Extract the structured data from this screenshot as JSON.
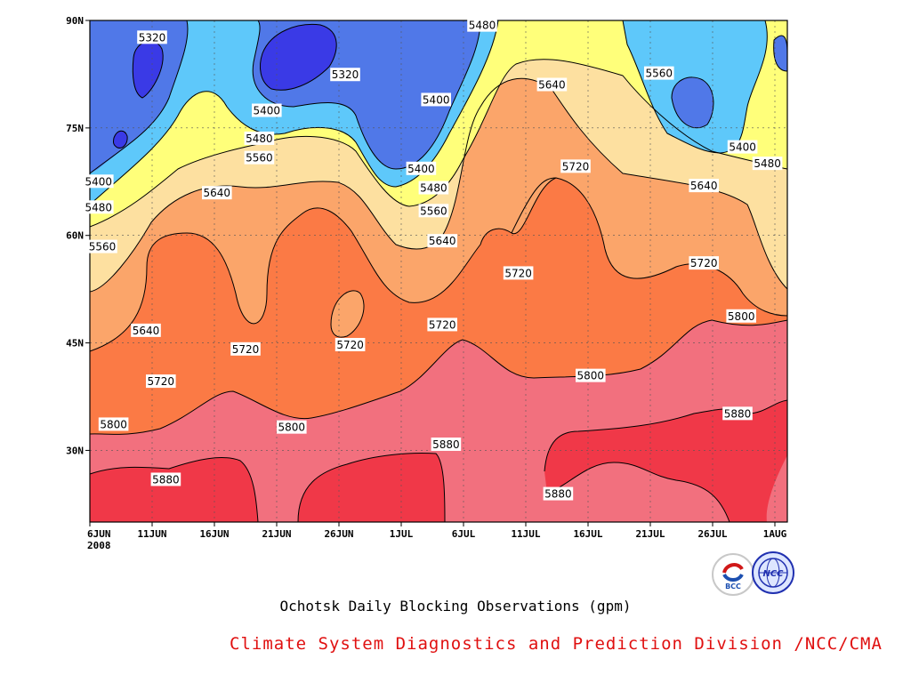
{
  "chart_data": {
    "type": "heatmap",
    "title": "Ochotsk Daily Blocking Observations (gpm)",
    "credit": "Climate System Diagnostics and Prediction Division /NCC/CMA",
    "credit_color": "#e01010",
    "x_ticks": [
      "6JUN",
      "11JUN",
      "16JUN",
      "21JUN",
      "26JUN",
      "1JUL",
      "6JUL",
      "11JUL",
      "16JUL",
      "21JUL",
      "26JUL",
      "1AUG"
    ],
    "x_tick_days": [
      0,
      5,
      10,
      15,
      20,
      25,
      30,
      35,
      40,
      45,
      50,
      55
    ],
    "x_year_label": "2008",
    "x_range_days": [
      0,
      56
    ],
    "y_ticks": [
      "30N",
      "45N",
      "60N",
      "75N",
      "90N"
    ],
    "y_tick_values": [
      30,
      45,
      60,
      75,
      90
    ],
    "y_range": [
      20,
      90
    ],
    "grid": true,
    "contour_levels": [
      5320,
      5400,
      5480,
      5560,
      5640,
      5720,
      5800,
      5880
    ],
    "fill_colors": {
      "below_5320": "#3a3ae6",
      "5320_5400": "#5078e8",
      "5400_5480": "#5ec8fa",
      "5480_5560": "#ffff7a",
      "5560_5640": "#fde0a0",
      "5640_5720": "#fba56a",
      "5720_5800": "#fb7a45",
      "5800_5880": "#f2707e",
      "above_5880": "#f03848"
    },
    "contour_labels": [
      {
        "text": "5320",
        "day": 5.0,
        "lat": 87.6
      },
      {
        "text": "5320",
        "day": 20.5,
        "lat": 82.4
      },
      {
        "text": "5480",
        "day": 31.5,
        "lat": 89.3
      },
      {
        "text": "5400",
        "day": 14.2,
        "lat": 77.4
      },
      {
        "text": "5400",
        "day": 27.8,
        "lat": 78.9
      },
      {
        "text": "5640",
        "day": 37.1,
        "lat": 81.0
      },
      {
        "text": "5560",
        "day": 45.7,
        "lat": 82.6
      },
      {
        "text": "5480",
        "day": 13.6,
        "lat": 73.5
      },
      {
        "text": "5560",
        "day": 13.6,
        "lat": 70.8
      },
      {
        "text": "5400",
        "day": 52.4,
        "lat": 72.3
      },
      {
        "text": "5480",
        "day": 54.4,
        "lat": 70.0
      },
      {
        "text": "5400",
        "day": 0.7,
        "lat": 67.5
      },
      {
        "text": "5400",
        "day": 26.6,
        "lat": 69.3
      },
      {
        "text": "5480",
        "day": 27.6,
        "lat": 66.6
      },
      {
        "text": "5480",
        "day": 0.7,
        "lat": 63.9
      },
      {
        "text": "5720",
        "day": 39.0,
        "lat": 69.6
      },
      {
        "text": "5640",
        "day": 10.2,
        "lat": 65.9
      },
      {
        "text": "5560",
        "day": 27.6,
        "lat": 63.4
      },
      {
        "text": "5640",
        "day": 49.3,
        "lat": 66.9
      },
      {
        "text": "5640",
        "day": 28.3,
        "lat": 59.2
      },
      {
        "text": "5560",
        "day": 1.0,
        "lat": 58.4
      },
      {
        "text": "5720",
        "day": 34.4,
        "lat": 54.7
      },
      {
        "text": "5720",
        "day": 49.3,
        "lat": 56.1
      },
      {
        "text": "5640",
        "day": 4.5,
        "lat": 46.7
      },
      {
        "text": "5720",
        "day": 28.3,
        "lat": 47.5
      },
      {
        "text": "5720",
        "day": 12.5,
        "lat": 44.1
      },
      {
        "text": "5720",
        "day": 20.9,
        "lat": 44.7
      },
      {
        "text": "5800",
        "day": 52.3,
        "lat": 48.7
      },
      {
        "text": "5720",
        "day": 5.7,
        "lat": 39.6
      },
      {
        "text": "5800",
        "day": 40.2,
        "lat": 40.4
      },
      {
        "text": "5880",
        "day": 52.0,
        "lat": 35.1
      },
      {
        "text": "5800",
        "day": 1.9,
        "lat": 33.6
      },
      {
        "text": "5800",
        "day": 16.2,
        "lat": 33.2
      },
      {
        "text": "5880",
        "day": 28.6,
        "lat": 30.8
      },
      {
        "text": "5880",
        "day": 6.1,
        "lat": 25.9
      },
      {
        "text": "5880",
        "day": 37.6,
        "lat": 23.9
      }
    ]
  },
  "logos": {
    "bcc_text": "BCC",
    "ncc_text": "NCC"
  }
}
